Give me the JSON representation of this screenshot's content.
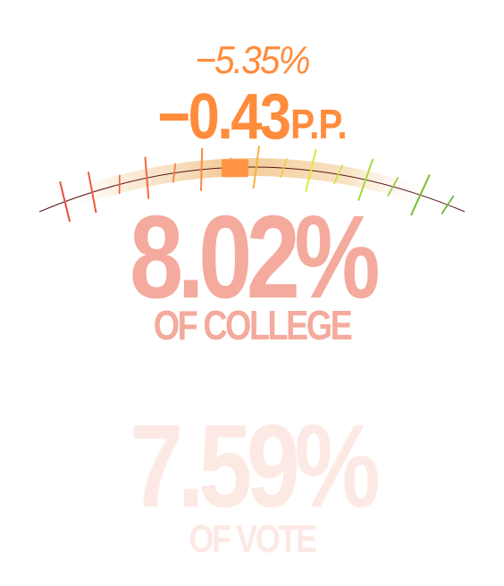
{
  "change": {
    "percent": "−5.35%",
    "points_value": "−0.43",
    "points_unit": "P.P."
  },
  "gauge": {
    "current_fraction": 0.46,
    "ticks": [
      {
        "color": "#ef4a3a",
        "long": true
      },
      {
        "color": "#ef5a3c",
        "long": true
      },
      {
        "color": "#f0603e",
        "long": false
      },
      {
        "color": "#f26a3f",
        "long": true
      },
      {
        "color": "#f4793f",
        "long": false
      },
      {
        "color": "#f58a40",
        "long": true
      },
      {
        "color": "#f6a040",
        "long": false
      },
      {
        "color": "#f7b23a",
        "long": true
      },
      {
        "color": "#f3cf3a",
        "long": false
      },
      {
        "color": "#d9ea3a",
        "long": true
      },
      {
        "color": "#c6e43a",
        "long": false
      },
      {
        "color": "#a8d93a",
        "long": true
      },
      {
        "color": "#8fcd3a",
        "long": false
      },
      {
        "color": "#74c02c",
        "long": true
      },
      {
        "color": "#5fb02a",
        "long": false
      }
    ],
    "track_color": "#f2c893",
    "marker_color": "#ff9444"
  },
  "college": {
    "percent": "8.02%",
    "label": "OF COLLEGE"
  },
  "vote": {
    "percent": "7.59%",
    "label": "OF VOTE"
  }
}
